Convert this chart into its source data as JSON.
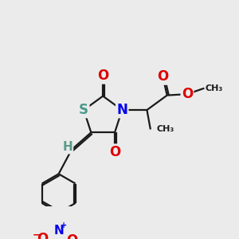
{
  "background_color": "#ebebeb",
  "bond_color": "#1a1a1a",
  "bond_width": 1.6,
  "atoms": {
    "S": {
      "color": "#4a9a8a",
      "fontsize": 12,
      "fontweight": "bold"
    },
    "N": {
      "color": "#0000ee",
      "fontsize": 12,
      "fontweight": "bold"
    },
    "O": {
      "color": "#dd0000",
      "fontsize": 12,
      "fontweight": "bold"
    },
    "H": {
      "color": "#5a9a8a",
      "fontsize": 11,
      "fontweight": "bold"
    },
    "NO2_N": {
      "color": "#0000ee",
      "fontsize": 11,
      "fontweight": "bold"
    },
    "CH3": {
      "color": "#1a1a1a",
      "fontsize": 9,
      "fontweight": "bold"
    }
  },
  "figsize": [
    3.0,
    3.0
  ],
  "dpi": 100
}
